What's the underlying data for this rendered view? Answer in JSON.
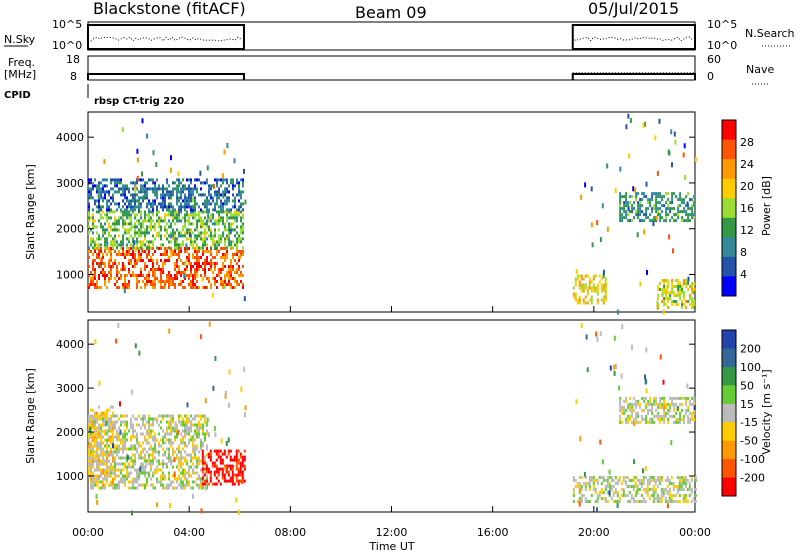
{
  "header": {
    "title": "Blackstone (fitACF)",
    "beam": "Beam 09",
    "date": "05/Jul/2015"
  },
  "panels": {
    "nsky_label": "N.Sky",
    "nsky_ticks": [
      "10^5",
      "10^0"
    ],
    "nsearch_label": "N.Search",
    "nsearch_ticks": [
      "10^5",
      "10^0"
    ],
    "freq_label": "Freq.",
    "freq_unit": "[MHz]",
    "freq_ticks": [
      "18",
      "8"
    ],
    "nave_label": "Nave",
    "nave_ticks": [
      "60",
      "0"
    ],
    "cpid_label": "CPID",
    "cpid_text": "rbsp CT-trig 220"
  },
  "axes": {
    "xlabel": "Time UT",
    "xticks": [
      "00:00",
      "04:00",
      "08:00",
      "12:00",
      "16:00",
      "20:00",
      "00:00"
    ],
    "ylabel": "Slant Range [km]",
    "yticks": [
      "4000",
      "3000",
      "2000",
      "1000"
    ]
  },
  "colorbars": {
    "power": {
      "label": "Power [dB]",
      "ticks": [
        "28",
        "24",
        "20",
        "16",
        "12",
        "8",
        "4"
      ],
      "colors": [
        "#ff0000",
        "#ff5500",
        "#ff9900",
        "#ffcc00",
        "#99dd33",
        "#339944",
        "#338899",
        "#2255aa",
        "#0000ff"
      ]
    },
    "velocity": {
      "label": "Velocity [m s⁻¹]",
      "ticks": [
        "200",
        "100",
        "50",
        "15",
        "-15",
        "-50",
        "-100",
        "-200"
      ],
      "colors": [
        "#2244aa",
        "#336699",
        "#339944",
        "#66cc33",
        "#bbbbbb",
        "#ffcc00",
        "#ff9900",
        "#ff5500",
        "#ff0000"
      ]
    }
  },
  "chart_data": [
    {
      "type": "heatmap",
      "title": "Power",
      "xlabel": "Time UT",
      "ylabel": "Slant Range [km]",
      "xlim": [
        "00:00",
        "24:00"
      ],
      "ylim": [
        180,
        4550
      ],
      "zlabel": "Power [dB]",
      "zrange": [
        0,
        32
      ],
      "regions": [
        {
          "t_start": "00:00",
          "t_end": "06:10",
          "range_km": [
            700,
            1600
          ],
          "value_db": 28
        },
        {
          "t_start": "00:00",
          "t_end": "06:10",
          "range_km": [
            1600,
            2400
          ],
          "value_db": 14
        },
        {
          "t_start": "00:00",
          "t_end": "06:10",
          "range_km": [
            2400,
            3100
          ],
          "value_db": 6
        },
        {
          "t_start": "19:10",
          "t_end": "20:30",
          "range_km": [
            400,
            1000
          ],
          "value_db": 20
        },
        {
          "t_start": "21:00",
          "t_end": "24:00",
          "range_km": [
            2200,
            2800
          ],
          "value_db": 10
        },
        {
          "t_start": "22:30",
          "t_end": "24:00",
          "range_km": [
            300,
            900
          ],
          "value_db": 18
        }
      ]
    },
    {
      "type": "heatmap",
      "title": "Velocity",
      "xlabel": "Time UT",
      "ylabel": "Slant Range [km]",
      "xlim": [
        "00:00",
        "24:00"
      ],
      "ylim": [
        180,
        4550
      ],
      "zlabel": "Velocity [m s-1]",
      "zrange": [
        -250,
        250
      ],
      "regions": [
        {
          "t_start": "00:00",
          "t_end": "04:40",
          "range_km": [
            700,
            2400
          ],
          "value_ms": 0
        },
        {
          "t_start": "00:00",
          "t_end": "01:00",
          "range_km": [
            800,
            2600
          ],
          "value_ms": -50
        },
        {
          "t_start": "04:30",
          "t_end": "06:10",
          "range_km": [
            800,
            1600
          ],
          "value_ms": -250
        },
        {
          "t_start": "19:10",
          "t_end": "24:00",
          "range_km": [
            400,
            1000
          ],
          "value_ms": 0
        },
        {
          "t_start": "21:00",
          "t_end": "24:00",
          "range_km": [
            2200,
            2800
          ],
          "value_ms": 0
        }
      ]
    },
    {
      "type": "line",
      "title": "N.Sky / N.Search",
      "segments": [
        {
          "t_start": "00:00",
          "t_end": "06:10"
        },
        {
          "t_start": "19:10",
          "t_end": "24:00"
        }
      ]
    },
    {
      "type": "line",
      "title": "Freq / Nave",
      "segments": [
        {
          "t_start": "00:00",
          "t_end": "06:10",
          "freq_mhz": 10.5
        },
        {
          "t_start": "19:10",
          "t_end": "24:00",
          "freq_mhz": 10.5,
          "nave": 18
        }
      ]
    }
  ]
}
